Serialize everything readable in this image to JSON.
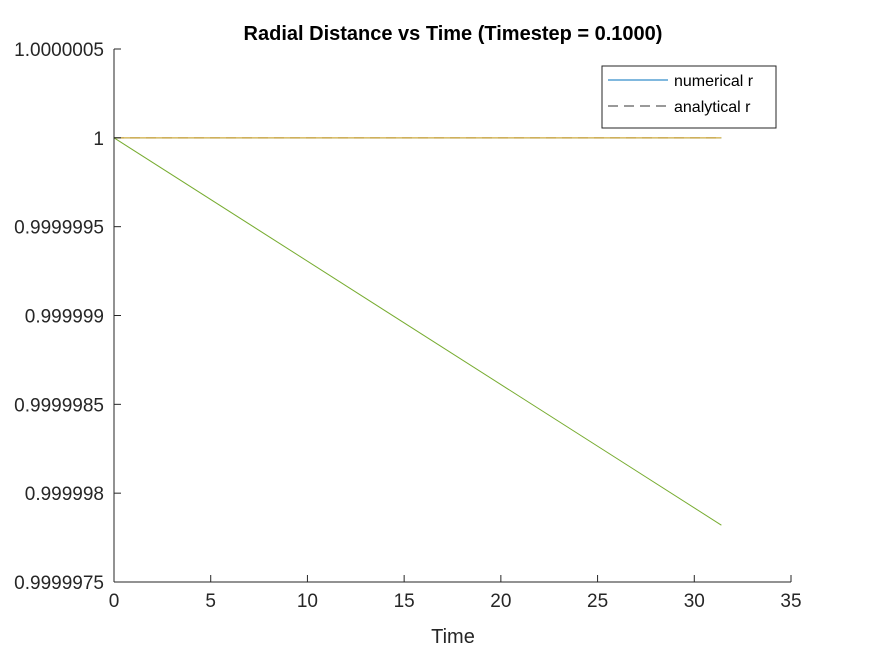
{
  "chart_data": {
    "type": "line",
    "title": "Radial Distance vs Time (Timestep = 0.1000)",
    "xlabel": "Time",
    "ylabel": "",
    "xlim": [
      0,
      35
    ],
    "ylim": [
      0.9999975,
      1.0000005
    ],
    "x_ticks": [
      0,
      5,
      10,
      15,
      20,
      25,
      30,
      35
    ],
    "x_tick_labels": [
      "0",
      "5",
      "10",
      "15",
      "20",
      "25",
      "30",
      "35"
    ],
    "y_ticks": [
      0.9999975,
      0.999998,
      0.9999985,
      0.999999,
      0.9999995,
      1,
      1.0000005
    ],
    "y_tick_labels": [
      "0.9999975",
      "0.999998",
      "0.9999985",
      "0.999999",
      "0.9999995",
      "1",
      "1.0000005"
    ],
    "grid": false,
    "legend_position": "top-right",
    "series": [
      {
        "name": "numerical r",
        "style": "solid",
        "color": "#0072BD",
        "in_legend": true,
        "x": [
          0,
          31.4
        ],
        "y": [
          1,
          1
        ]
      },
      {
        "name": "analytical r",
        "style": "dashed",
        "color": "#333333",
        "in_legend": true,
        "x": [
          0,
          31.4
        ],
        "y": [
          1,
          1
        ]
      },
      {
        "style": "solid",
        "color": "#EDB120",
        "in_legend": false,
        "x": [
          0,
          31.4
        ],
        "y": [
          1,
          1
        ]
      },
      {
        "style": "solid",
        "color": "#77AC30",
        "in_legend": false,
        "x": [
          0,
          31.4
        ],
        "y": [
          1,
          0.99999782
        ]
      }
    ]
  }
}
